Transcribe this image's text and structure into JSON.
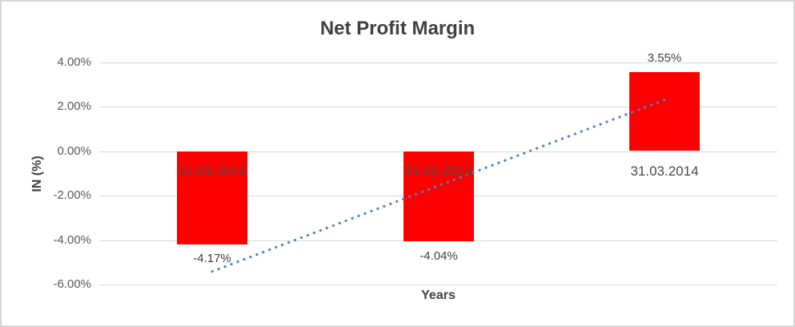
{
  "frame": {
    "background": "#ffffff",
    "border_color": "#d6d6d6"
  },
  "chart_data": {
    "type": "bar",
    "title": "Net Profit Margin",
    "xlabel": "Years",
    "ylabel": "IN (%)",
    "categories": [
      "31.03.2012",
      "31.03.2013",
      "31.03.2014"
    ],
    "values": [
      -4.17,
      -4.04,
      3.55
    ],
    "data_labels": [
      "-4.17%",
      "-4.04%",
      "3.55%"
    ],
    "yticks": {
      "labels": [
        "4.00%",
        "2.00%",
        "0.00%",
        "-2.00%",
        "-4.00%",
        "-6.00%"
      ],
      "values": [
        4,
        2,
        0,
        -2,
        -4,
        -6
      ]
    },
    "ylim": [
      -6,
      4
    ],
    "grid": true,
    "legend": "none",
    "bar_color": "#ff0000",
    "gridline_color": "#d9d9d9",
    "trendline": {
      "style": "dotted",
      "color": "#4d82c6",
      "start_value": -5.41,
      "end_value": 2.31
    }
  }
}
